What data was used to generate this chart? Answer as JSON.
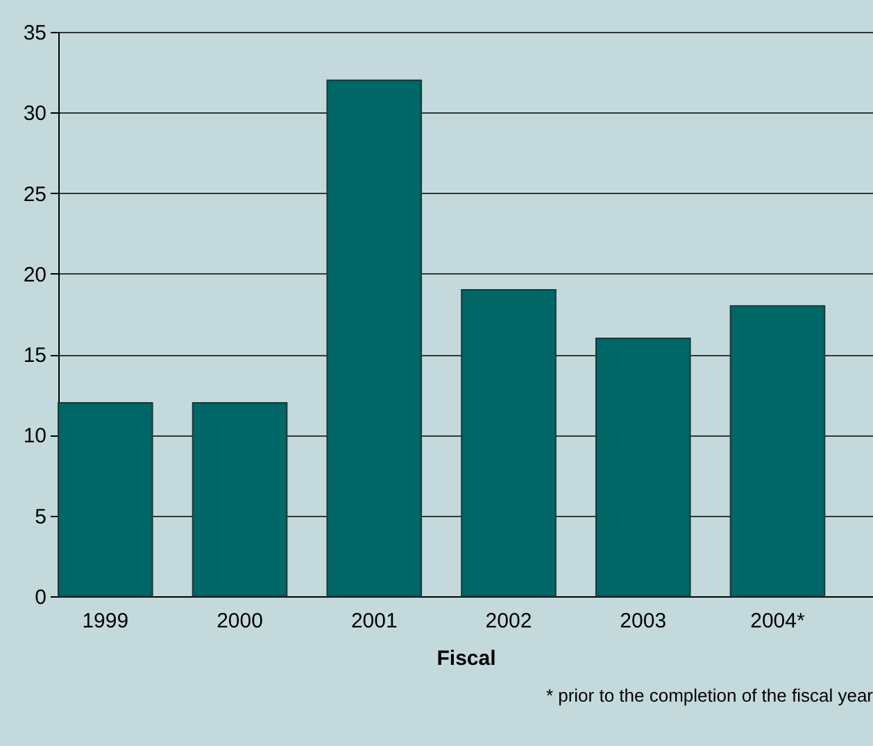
{
  "chart_data": {
    "type": "bar",
    "xlabel": "Fiscal",
    "categories": [
      "1999",
      "2000",
      "2001",
      "2002",
      "2003",
      "2004*"
    ],
    "values": [
      12,
      12,
      32,
      19,
      16,
      18
    ],
    "color": "#006666",
    "ylim": [
      0,
      35
    ],
    "yticks": [
      0,
      5,
      10,
      15,
      20,
      25,
      30,
      35
    ],
    "grid": "y",
    "annotations": [
      "* prior to the completion of the fiscal year"
    ]
  }
}
